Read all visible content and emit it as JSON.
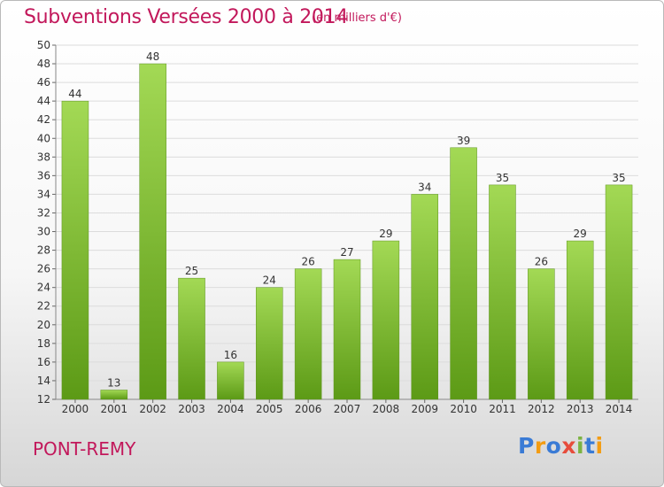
{
  "title": "Subventions Versées 2000 à 2014",
  "subtitle": "(en milliers d'€)",
  "commune": "PONT-REMY",
  "logo": {
    "text": "Proxiti",
    "letters": [
      "P",
      "r",
      "o",
      "x",
      "i",
      "t",
      "i"
    ],
    "colors": [
      "#3a7bd5",
      "#f39c12",
      "#3a7bd5",
      "#e74c3c",
      "#7cb342",
      "#3a7bd5",
      "#f39c12"
    ]
  },
  "chart_data": {
    "type": "bar",
    "categories": [
      "2000",
      "2001",
      "2002",
      "2003",
      "2004",
      "2005",
      "2006",
      "2007",
      "2008",
      "2009",
      "2010",
      "2011",
      "2012",
      "2013",
      "2014"
    ],
    "values": [
      44,
      13,
      48,
      25,
      16,
      24,
      26,
      27,
      29,
      34,
      39,
      35,
      26,
      29,
      35
    ],
    "data_labels": [
      "44",
      "13",
      "48",
      "25",
      "16",
      "24",
      "26",
      "27",
      "29",
      "34",
      "39",
      "35",
      "26",
      "29",
      "35"
    ],
    "xlabel": "",
    "ylabel": "",
    "ylim": [
      12,
      50
    ],
    "yticks": [
      "12",
      "14",
      "16",
      "18",
      "20",
      "22",
      "24",
      "26",
      "28",
      "30",
      "32",
      "34",
      "36",
      "38",
      "40",
      "42",
      "44",
      "46",
      "48",
      "50"
    ],
    "grid": true,
    "bar_color_top": "#a3d955",
    "bar_color_bottom": "#5c9a16"
  }
}
